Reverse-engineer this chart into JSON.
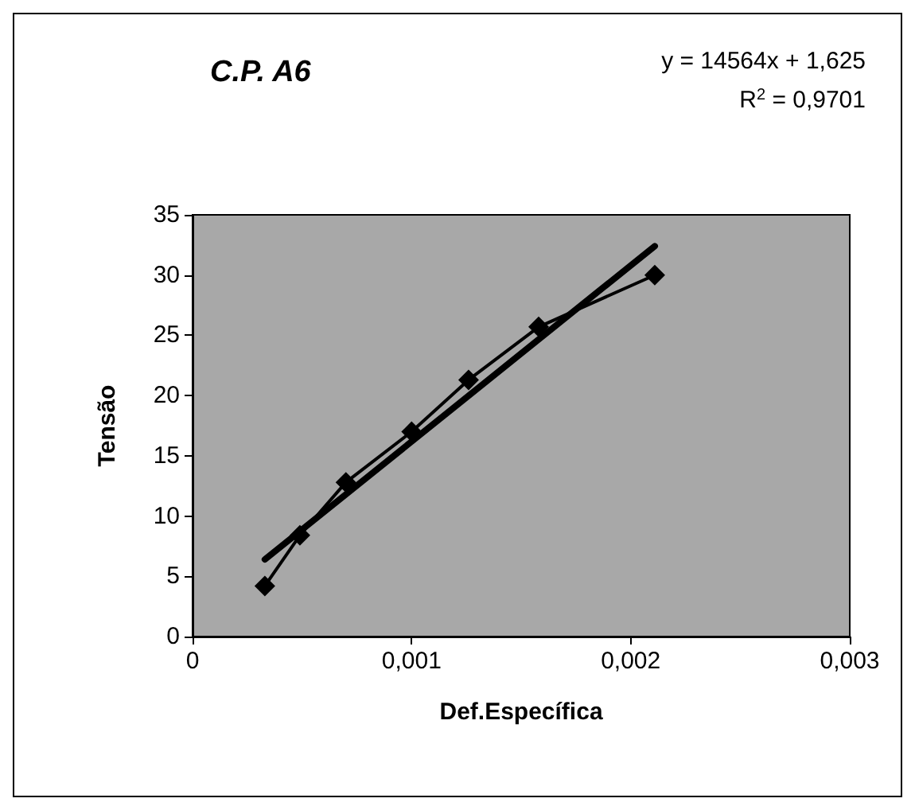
{
  "chart_data": {
    "type": "line",
    "title": "C.P. A6",
    "xlabel": "Def.Específica",
    "ylabel": "Tensão",
    "annotations": [
      "y = 14564x + 1,625",
      "R$^{2}$ = 0,9701"
    ],
    "series": [
      {
        "color": "#000000",
        "x": [
          0.00033,
          0.00049,
          0.0007,
          0.001,
          0.00126,
          0.00158,
          0.00211
        ],
        "values": [
          4.2,
          8.4,
          12.8,
          17.0,
          21.3,
          25.7,
          30.0
        ],
        "marker": "diamond",
        "line_style": "solid"
      },
      {
        "type": "line",
        "color": "#000000",
        "x": [
          0.00033,
          0.00211
        ],
        "values": [
          6.4,
          32.4
        ],
        "marker": "none",
        "line_style": "solid"
      }
    ],
    "xlim": [
      0,
      0.003
    ],
    "xticks": [
      {
        "value": 0,
        "label": "0"
      },
      {
        "value": 0.001,
        "label": "0,001"
      },
      {
        "value": 0.002,
        "label": "0,002"
      },
      {
        "value": 0.003,
        "label": "0,003"
      }
    ],
    "ylim": [
      0,
      35
    ],
    "yticks": [
      0,
      5,
      10,
      15,
      20,
      25,
      30,
      35
    ],
    "grid": false
  }
}
